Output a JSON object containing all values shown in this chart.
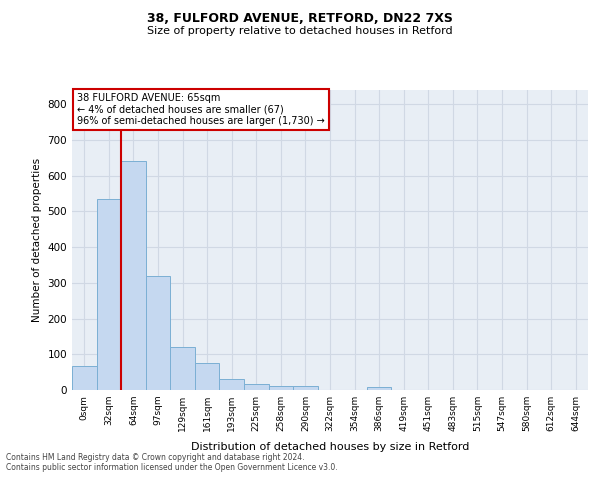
{
  "title1": "38, FULFORD AVENUE, RETFORD, DN22 7XS",
  "title2": "Size of property relative to detached houses in Retford",
  "xlabel": "Distribution of detached houses by size in Retford",
  "ylabel": "Number of detached properties",
  "categories": [
    "0sqm",
    "32sqm",
    "64sqm",
    "97sqm",
    "129sqm",
    "161sqm",
    "193sqm",
    "225sqm",
    "258sqm",
    "290sqm",
    "322sqm",
    "354sqm",
    "386sqm",
    "419sqm",
    "451sqm",
    "483sqm",
    "515sqm",
    "547sqm",
    "580sqm",
    "612sqm",
    "644sqm"
  ],
  "bar_values": [
    67,
    535,
    640,
    318,
    120,
    77,
    30,
    18,
    11,
    12,
    0,
    0,
    8,
    0,
    0,
    0,
    0,
    0,
    0,
    0,
    0
  ],
  "bar_color": "#c5d8f0",
  "bar_edge_color": "#7bafd4",
  "annotation_box_text": "38 FULFORD AVENUE: 65sqm\n← 4% of detached houses are smaller (67)\n96% of semi-detached houses are larger (1,730) →",
  "annotation_box_color": "#cc0000",
  "annotation_box_bg": "#ffffff",
  "vline_x": 1.5,
  "vline_color": "#cc0000",
  "ylim": [
    0,
    840
  ],
  "yticks": [
    0,
    100,
    200,
    300,
    400,
    500,
    600,
    700,
    800
  ],
  "grid_color": "#d0d8e4",
  "bg_color": "#e8eef5",
  "fig_bg_color": "#ffffff",
  "footer1": "Contains HM Land Registry data © Crown copyright and database right 2024.",
  "footer2": "Contains public sector information licensed under the Open Government Licence v3.0."
}
